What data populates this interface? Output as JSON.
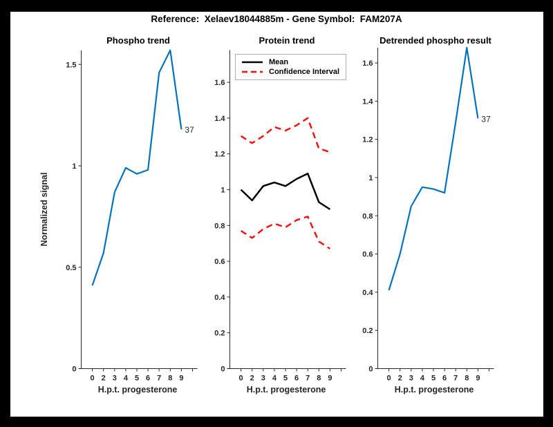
{
  "figure": {
    "title": "Reference:  Xelaev18044885m - Gene Symbol:  FAM207A"
  },
  "colors": {
    "blue": "#0072BD",
    "red": "#F01414",
    "black": "#000000",
    "axis": "#262626",
    "legend_border": "#ADADAD",
    "frame": "#000000",
    "background": "#FFFFFF"
  },
  "chart_data": [
    {
      "type": "line",
      "title": "Phospho trend",
      "xlabel": "H.p.t. progesterone",
      "ylabel": "Normalized signal",
      "x_values": [
        0,
        2,
        3,
        4,
        5,
        6,
        7,
        8,
        9
      ],
      "x_tick_labels": [
        "0",
        "2",
        "3",
        "4",
        "5",
        "6",
        "7",
        "8",
        "9"
      ],
      "ytick_values": [
        0,
        0.5,
        1,
        1.5
      ],
      "ytick_labels": [
        "0",
        "0.5",
        "1",
        "1.5"
      ],
      "ylim": [
        0,
        1.57
      ],
      "grid": false,
      "series": [
        {
          "name": "phospho signal",
          "color_key": "blue",
          "dash": false,
          "values": [
            0.41,
            0.57,
            0.87,
            0.99,
            0.96,
            0.98,
            1.46,
            1.57,
            1.18
          ]
        }
      ],
      "point_label": {
        "text": "37",
        "index": 8
      }
    },
    {
      "type": "line",
      "title": "Protein trend",
      "xlabel": "H.p.t. progesterone",
      "ylabel": "",
      "x_values": [
        0,
        2,
        3,
        4,
        5,
        6,
        7,
        8,
        9
      ],
      "x_tick_labels": [
        "0",
        "2",
        "3",
        "4",
        "5",
        "6",
        "7",
        "8",
        "9"
      ],
      "ytick_values": [
        0,
        0.2,
        0.4,
        0.6,
        0.8,
        1,
        1.2,
        1.4,
        1.6
      ],
      "ytick_labels": [
        "0",
        "0.2",
        "0.4",
        "0.6",
        "0.8",
        "1",
        "1.2",
        "1.4",
        "1.6"
      ],
      "ylim": [
        0,
        1.78
      ],
      "grid": false,
      "legend": {
        "position": "top-left-inside",
        "entries": [
          {
            "label": "Mean",
            "color_key": "black",
            "dash": false
          },
          {
            "label": "Confidence Interval",
            "color_key": "red",
            "dash": true
          }
        ]
      },
      "series": [
        {
          "name": "ci upper",
          "color_key": "red",
          "dash": true,
          "values": [
            1.3,
            1.26,
            1.3,
            1.35,
            1.33,
            1.36,
            1.4,
            1.23,
            1.21
          ]
        },
        {
          "name": "ci lower",
          "color_key": "red",
          "dash": true,
          "values": [
            0.77,
            0.73,
            0.78,
            0.81,
            0.79,
            0.83,
            0.85,
            0.71,
            0.67
          ]
        },
        {
          "name": "mean",
          "color_key": "black",
          "dash": false,
          "values": [
            1.0,
            0.94,
            1.02,
            1.04,
            1.02,
            1.06,
            1.09,
            0.93,
            0.89
          ]
        }
      ]
    },
    {
      "type": "line",
      "title": "Detrended phospho result",
      "xlabel": "H.p.t. progesterone",
      "ylabel": "",
      "x_values": [
        0,
        2,
        3,
        4,
        5,
        6,
        7,
        8,
        9
      ],
      "x_tick_labels": [
        "0",
        "2",
        "3",
        "4",
        "5",
        "6",
        "7",
        "8",
        "9"
      ],
      "ytick_values": [
        0,
        0.2,
        0.4,
        0.6,
        0.8,
        1,
        1.2,
        1.4,
        1.6
      ],
      "ytick_labels": [
        "0",
        "0.2",
        "0.4",
        "0.6",
        "0.8",
        "1",
        "1.2",
        "1.4",
        "1.6"
      ],
      "ylim": [
        0,
        1.68
      ],
      "grid": false,
      "series": [
        {
          "name": "detrended phospho",
          "color_key": "blue",
          "dash": false,
          "values": [
            0.41,
            0.6,
            0.85,
            0.95,
            0.94,
            0.92,
            1.29,
            1.68,
            1.31
          ]
        }
      ],
      "point_label": {
        "text": "37",
        "index": 8
      }
    }
  ]
}
